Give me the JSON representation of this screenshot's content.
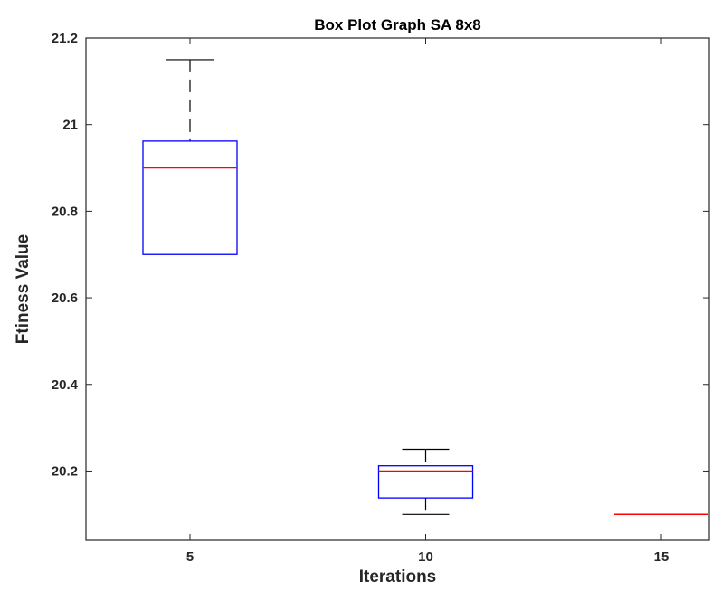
{
  "chart_data": {
    "type": "box",
    "title": "Box Plot Graph SA 8x8",
    "xlabel": "Iterations",
    "ylabel": "Ftiness Value",
    "ylim": [
      20.04,
      21.2
    ],
    "y_ticks": [
      20.2,
      20.4,
      20.6,
      20.8,
      21.0,
      21.2
    ],
    "y_tick_labels": [
      "20.2",
      "20.4",
      "20.6",
      "20.8",
      "21",
      "21.2"
    ],
    "categories": [
      "5",
      "10",
      "15"
    ],
    "boxes": [
      {
        "category": "5",
        "lower_whisker": 20.7,
        "q1": 20.7,
        "median": 20.9,
        "q3": 20.962,
        "upper_whisker": 21.15
      },
      {
        "category": "10",
        "lower_whisker": 20.1,
        "q1": 20.138,
        "median": 20.2,
        "q3": 20.212,
        "upper_whisker": 20.25
      },
      {
        "category": "15",
        "lower_whisker": 20.1,
        "q1": 20.1,
        "median": 20.1,
        "q3": 20.1,
        "upper_whisker": 20.1
      }
    ],
    "colors": {
      "box": "#0000ff",
      "median": "#ff0000",
      "whisker": "#000000",
      "axis": "#262626"
    },
    "grid": false,
    "legend": "none"
  }
}
